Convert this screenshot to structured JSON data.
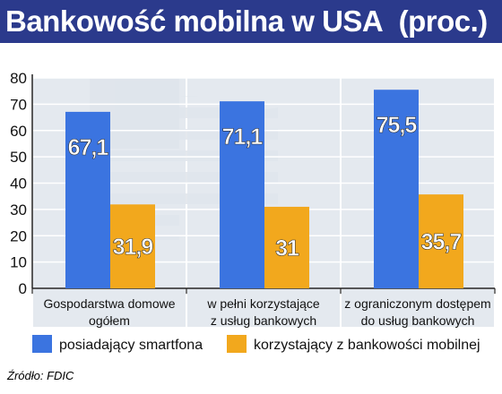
{
  "header": {
    "title": "Bankowość mobilna w USA",
    "unit": "(proc.)"
  },
  "chart_data": {
    "type": "bar",
    "categories": [
      [
        "Gospodarstwa domowe",
        "ogółem"
      ],
      [
        "w pełni korzystające",
        "z usług bankowych"
      ],
      [
        "z ograniczonym dostępem",
        "do usług bankowych"
      ]
    ],
    "series": [
      {
        "name": "posiadający smartfona",
        "values": [
          67.1,
          71.1,
          75.5
        ],
        "labels": [
          "67,1",
          "71,1",
          "75,5"
        ],
        "color": "#3b74e0"
      },
      {
        "name": "korzystający z bankowości mobilnej",
        "values": [
          31.9,
          31,
          35.7
        ],
        "labels": [
          "31,9",
          "31",
          "35,7"
        ],
        "color": "#f2a81d"
      }
    ],
    "ylim": [
      0,
      80
    ],
    "yticks": [
      "0",
      "10",
      "20",
      "30",
      "40",
      "50",
      "60",
      "70",
      "80"
    ],
    "grid": true,
    "legend_position": "bottom"
  },
  "colors": {
    "header_bg": "#2b3a8c",
    "panel_bg": "#dfe5ec",
    "grid": "#ffffff",
    "label_text": "#ffffff"
  },
  "footer": {
    "source": "Źródło: FDIC"
  }
}
